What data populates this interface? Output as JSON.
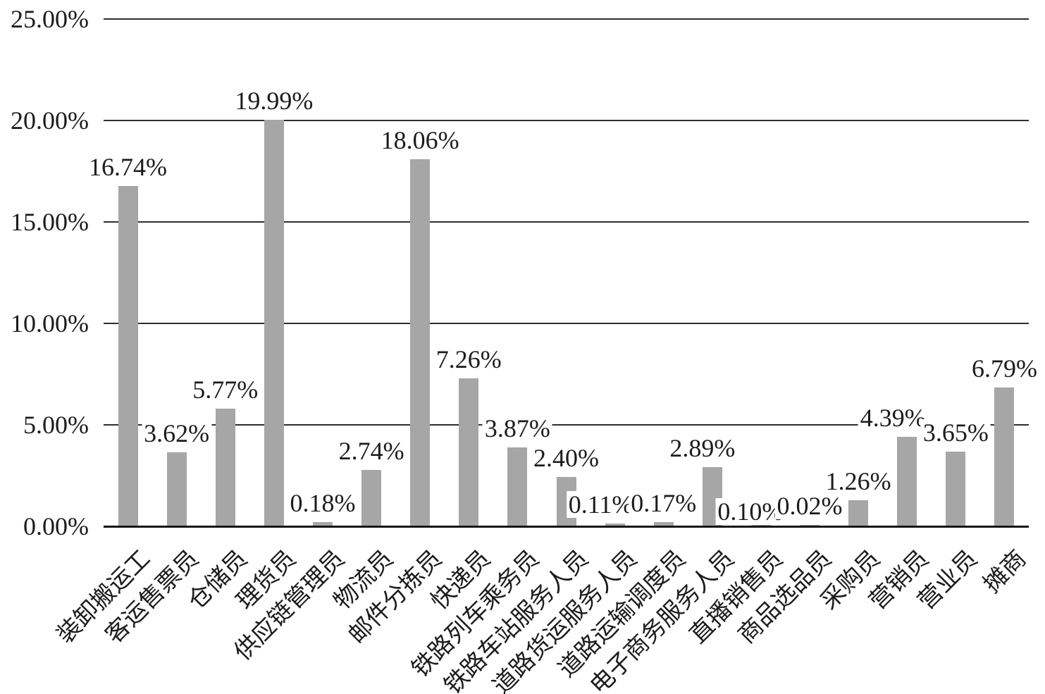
{
  "chart_data": {
    "type": "bar",
    "title": "",
    "xlabel": "",
    "ylabel": "",
    "categories": [
      "装卸搬运工",
      "客运售票员",
      "仓储员",
      "理货员",
      "供应链管理员",
      "物流员",
      "邮件分拣员",
      "快递员",
      "铁路列车乘务员",
      "铁路车站服务人员",
      "道路货运服务人员",
      "道路运输调度员",
      "电子商务服务人员",
      "直播销售员",
      "商品选品员",
      "采购员",
      "营销员",
      "营业员",
      "摊商"
    ],
    "values": [
      16.74,
      3.62,
      5.77,
      19.99,
      0.18,
      2.74,
      18.06,
      7.26,
      3.87,
      2.4,
      0.11,
      0.17,
      2.89,
      0.1,
      0.02,
      1.26,
      4.39,
      3.65,
      6.79
    ],
    "value_labels": [
      "16.74%",
      "3.62%",
      "5.77%",
      "19.99%",
      "0.18%",
      "2.74%",
      "18.06%",
      "7.26%",
      "3.87%",
      "2.40%",
      "0.11%",
      "0.17%",
      "2.89%",
      "0.10%",
      "0.02%",
      "1.26%",
      "4.39%",
      "3.65%",
      "6.79%"
    ],
    "y_tick_labels": [
      "25.00%",
      "20.00%",
      "15.00%",
      "10.00%",
      "5.00%",
      "0.00%"
    ],
    "ylim": [
      0,
      25
    ],
    "grid": true,
    "legend_position": "none",
    "bar_color": "#a6a6a6",
    "gridline_color": "#2e2e2e",
    "text_color": "#1c1c1c"
  }
}
